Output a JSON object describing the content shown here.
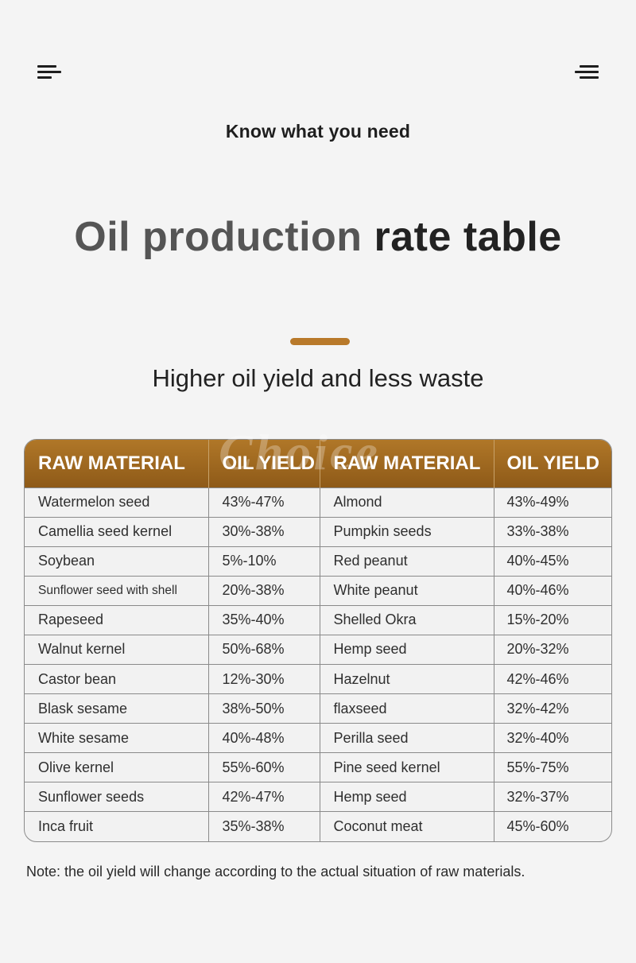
{
  "header": {
    "eyebrow": "Know what you need",
    "title_part1": "Oil production",
    "title_part2": "rate table",
    "subtitle": "Higher oil yield and less waste",
    "left_icon": "menu-icon",
    "right_icon": "menu-icon",
    "accent_color": "#b8792a"
  },
  "watermark": "Choice",
  "table": {
    "headers": [
      "RAW MATERIAL",
      "OIL YIELD",
      "RAW MATERIAL",
      "OIL YIELD"
    ],
    "rows": [
      [
        "Watermelon seed",
        "43%-47%",
        "Almond",
        "43%-49%"
      ],
      [
        "Camellia seed kernel",
        "30%-38%",
        "Pumpkin seeds",
        "33%-38%"
      ],
      [
        "Soybean",
        "5%-10%",
        "Red peanut",
        "40%-45%"
      ],
      [
        "Sunflower seed with shell",
        "20%-38%",
        "White peanut",
        "40%-46%"
      ],
      [
        "Rapeseed",
        "35%-40%",
        "Shelled Okra",
        "15%-20%"
      ],
      [
        "Walnut kernel",
        "50%-68%",
        "Hemp seed",
        "20%-32%"
      ],
      [
        "Castor bean",
        "12%-30%",
        "Hazelnut",
        "42%-46%"
      ],
      [
        "Blask sesame",
        "38%-50%",
        "flaxseed",
        "32%-42%"
      ],
      [
        "White sesame",
        "40%-48%",
        "Perilla seed",
        "32%-40%"
      ],
      [
        "Olive kernel",
        "55%-60%",
        "Pine seed kernel",
        "55%-75%"
      ],
      [
        "Sunflower seeds",
        "42%-47%",
        "Hemp seed",
        "32%-37%"
      ],
      [
        "Inca fruit",
        "35%-38%",
        "Coconut meat",
        "45%-60%"
      ]
    ]
  },
  "note": "Note: the oil yield will change according to the actual situation of raw materials."
}
